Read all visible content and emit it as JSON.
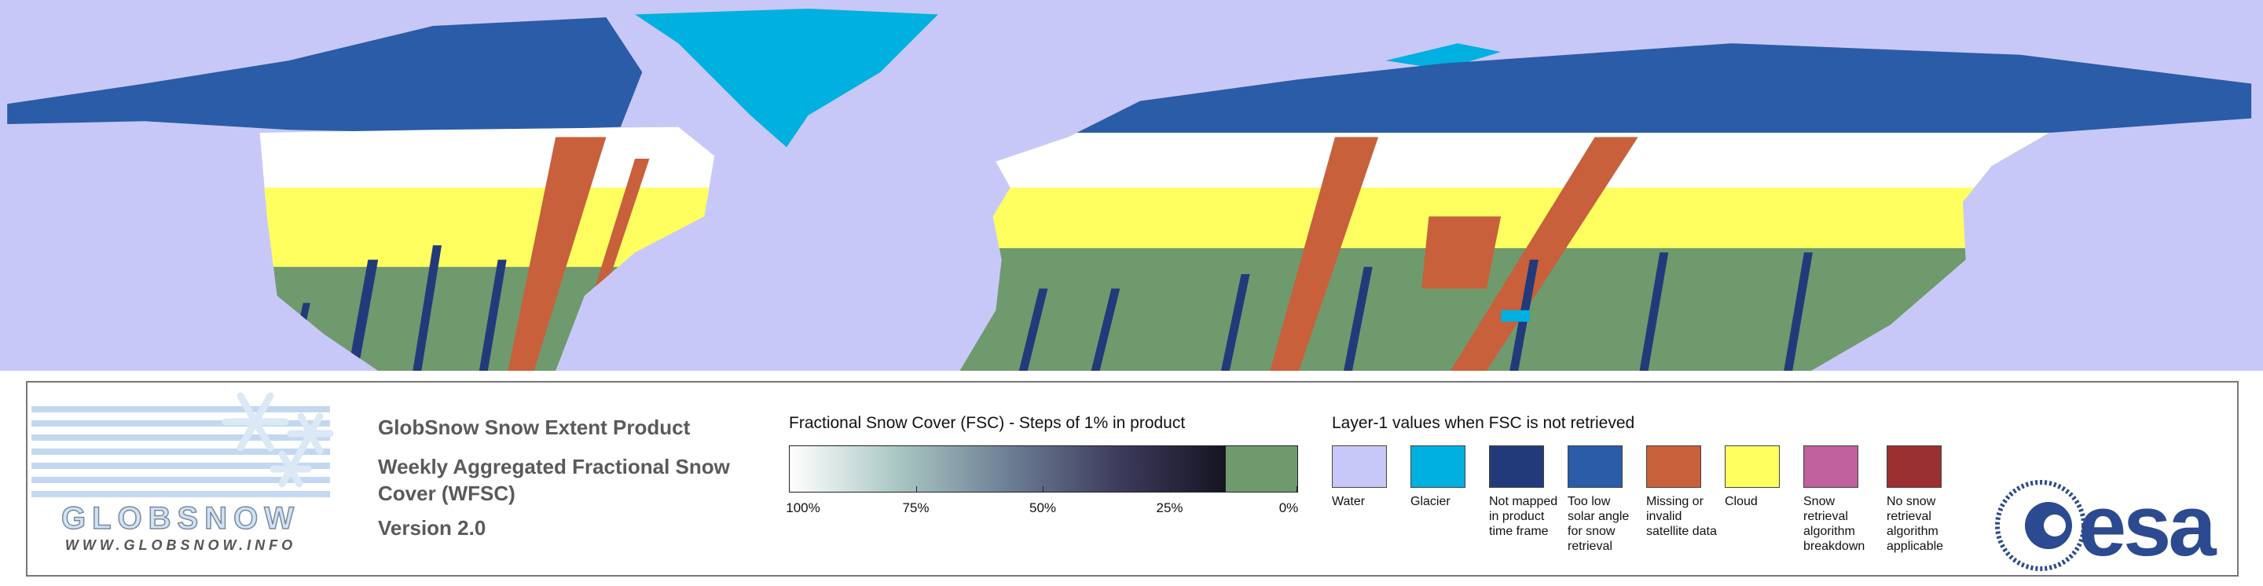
{
  "header": {
    "product": "GlobSnow Snow Extent Product",
    "subtitle": "Weekly Aggregated Fractional Snow Cover (WFSC)",
    "version": "Version 2.0"
  },
  "logo": {
    "name": "GLOBSNOW",
    "url": "WWW.GLOBSNOW.INFO"
  },
  "colorbar": {
    "title": "Fractional Snow Cover (FSC) - Steps of 1% in product",
    "colors": [
      "#ffffff",
      "#a9c6c2",
      "#6d7f95",
      "#3e3c5e",
      "#141421"
    ],
    "no_snow_color": "#6f9a6e",
    "range": [
      100,
      0
    ],
    "ticks": [
      {
        "value": 100,
        "label": "100%"
      },
      {
        "value": 75,
        "label": "75%"
      },
      {
        "value": 50,
        "label": "50%"
      },
      {
        "value": 25,
        "label": "25%"
      },
      {
        "value": 0,
        "label": "0%"
      }
    ]
  },
  "legend": {
    "title": "Layer-1 values when FSC is not retrieved",
    "items": [
      {
        "label": "Water",
        "color": "#c8c8f8"
      },
      {
        "label": "Glacier",
        "color": "#00b0e0"
      },
      {
        "label": "Not mapped in product time frame",
        "color": "#233a7a"
      },
      {
        "label": "Too low solar angle for snow retrieval",
        "color": "#2a5ca8"
      },
      {
        "label": "Missing or invalid satellite data",
        "color": "#c8603c"
      },
      {
        "label": "Cloud",
        "color": "#ffff60"
      },
      {
        "label": "Snow retrieval algorithm breakdown",
        "color": "#c0609c"
      },
      {
        "label": "No snow retrieval algorithm applicable",
        "color": "#9a3030"
      }
    ]
  },
  "agency": "esa"
}
